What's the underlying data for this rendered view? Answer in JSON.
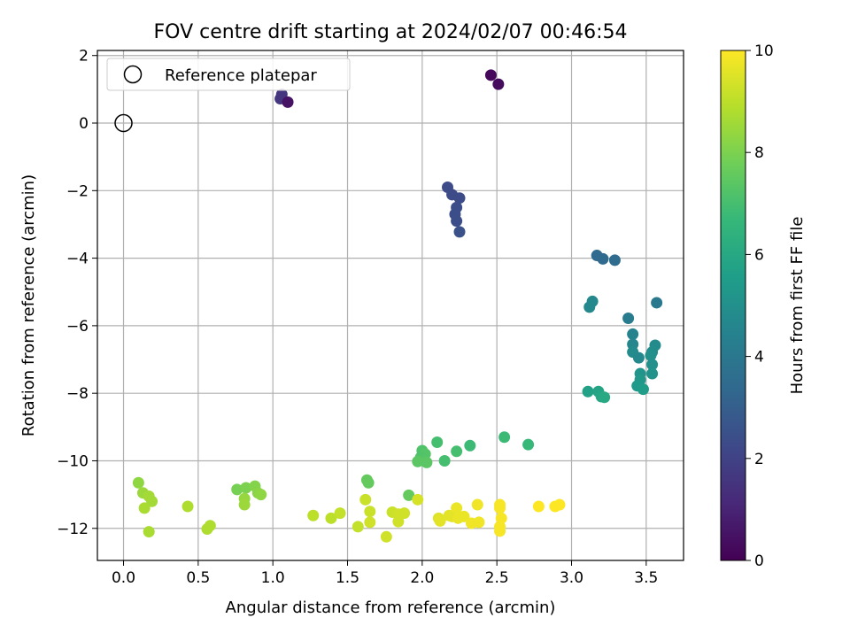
{
  "chart_data": {
    "type": "scatter",
    "title": "FOV centre drift starting at 2024/02/07 00:46:54",
    "xlabel": "Angular distance from reference (arcmin)",
    "ylabel": "Rotation from reference (arcmin)",
    "xlim": [
      -0.175,
      3.75
    ],
    "ylim": [
      -12.95,
      2.15
    ],
    "xticks": [
      "0.0",
      "0.5",
      "1.0",
      "1.5",
      "2.0",
      "2.5",
      "3.0",
      "3.5"
    ],
    "yticks": [
      "2",
      "0",
      "−2",
      "−4",
      "−6",
      "−8",
      "−10",
      "−12"
    ],
    "grid": true,
    "legend": {
      "placement": "top-left",
      "entries": [
        "Reference platepar"
      ]
    },
    "colorbar": {
      "label": "Hours from first FF file",
      "range": [
        0,
        10
      ],
      "ticks": [
        "0",
        "2",
        "4",
        "6",
        "8",
        "10"
      ],
      "colormap": [
        "#440154",
        "#482878",
        "#3e4989",
        "#31688e",
        "#26828e",
        "#1f9e89",
        "#35b779",
        "#6ece58",
        "#b5de2b",
        "#fde725"
      ]
    },
    "reference_point": {
      "x": 0.0,
      "y": 0.0
    },
    "points": [
      {
        "x": 2.46,
        "y": 1.42,
        "t": 0.2
      },
      {
        "x": 2.51,
        "y": 1.15,
        "t": 0.3
      },
      {
        "x": 1.05,
        "y": 0.72,
        "t": 1.6
      },
      {
        "x": 1.06,
        "y": 0.85,
        "t": 1.5
      },
      {
        "x": 1.1,
        "y": 0.62,
        "t": 0.5
      },
      {
        "x": 2.17,
        "y": -1.9,
        "t": 2.3
      },
      {
        "x": 2.2,
        "y": -2.12,
        "t": 2.3
      },
      {
        "x": 2.25,
        "y": -2.22,
        "t": 2.3
      },
      {
        "x": 2.23,
        "y": -2.5,
        "t": 2.4
      },
      {
        "x": 2.22,
        "y": -2.7,
        "t": 2.4
      },
      {
        "x": 2.23,
        "y": -2.9,
        "t": 2.4
      },
      {
        "x": 2.25,
        "y": -3.22,
        "t": 2.5
      },
      {
        "x": 3.17,
        "y": -3.92,
        "t": 3.4
      },
      {
        "x": 3.21,
        "y": -4.02,
        "t": 3.4
      },
      {
        "x": 3.29,
        "y": -4.06,
        "t": 3.5
      },
      {
        "x": 3.12,
        "y": -5.45,
        "t": 4.7
      },
      {
        "x": 3.14,
        "y": -5.28,
        "t": 4.7
      },
      {
        "x": 3.38,
        "y": -5.78,
        "t": 4.2
      },
      {
        "x": 3.57,
        "y": -5.32,
        "t": 4.0
      },
      {
        "x": 3.41,
        "y": -6.25,
        "t": 4.5
      },
      {
        "x": 3.41,
        "y": -6.55,
        "t": 4.6
      },
      {
        "x": 3.41,
        "y": -6.78,
        "t": 4.8
      },
      {
        "x": 3.45,
        "y": -6.95,
        "t": 4.7
      },
      {
        "x": 3.56,
        "y": -6.58,
        "t": 4.8
      },
      {
        "x": 3.54,
        "y": -6.78,
        "t": 4.9
      },
      {
        "x": 3.53,
        "y": -6.88,
        "t": 5.0
      },
      {
        "x": 3.54,
        "y": -7.15,
        "t": 5.0
      },
      {
        "x": 3.54,
        "y": -7.42,
        "t": 5.1
      },
      {
        "x": 3.46,
        "y": -7.42,
        "t": 5.2
      },
      {
        "x": 3.46,
        "y": -7.6,
        "t": 5.3
      },
      {
        "x": 3.44,
        "y": -7.78,
        "t": 5.4
      },
      {
        "x": 3.48,
        "y": -7.88,
        "t": 5.5
      },
      {
        "x": 3.11,
        "y": -7.95,
        "t": 5.7
      },
      {
        "x": 3.18,
        "y": -7.95,
        "t": 5.8
      },
      {
        "x": 3.2,
        "y": -8.1,
        "t": 5.9
      },
      {
        "x": 3.22,
        "y": -8.12,
        "t": 6.0
      },
      {
        "x": 2.55,
        "y": -9.3,
        "t": 6.8
      },
      {
        "x": 2.71,
        "y": -9.52,
        "t": 6.7
      },
      {
        "x": 2.32,
        "y": -9.55,
        "t": 6.8
      },
      {
        "x": 2.1,
        "y": -9.45,
        "t": 7.0
      },
      {
        "x": 2.23,
        "y": -9.72,
        "t": 7.0
      },
      {
        "x": 2.15,
        "y": -10.0,
        "t": 7.0
      },
      {
        "x": 2.0,
        "y": -9.7,
        "t": 7.2
      },
      {
        "x": 2.02,
        "y": -9.8,
        "t": 7.3
      },
      {
        "x": 1.99,
        "y": -9.9,
        "t": 7.2
      },
      {
        "x": 2.01,
        "y": -10.0,
        "t": 7.3
      },
      {
        "x": 1.97,
        "y": -10.02,
        "t": 7.4
      },
      {
        "x": 2.03,
        "y": -10.05,
        "t": 7.4
      },
      {
        "x": 1.91,
        "y": -11.02,
        "t": 7.6
      },
      {
        "x": 1.63,
        "y": -10.57,
        "t": 7.6
      },
      {
        "x": 1.64,
        "y": -10.65,
        "t": 7.6
      },
      {
        "x": 0.76,
        "y": -10.85,
        "t": 7.9
      },
      {
        "x": 0.82,
        "y": -10.8,
        "t": 8.0
      },
      {
        "x": 0.88,
        "y": -10.75,
        "t": 8.1
      },
      {
        "x": 0.9,
        "y": -10.95,
        "t": 8.2
      },
      {
        "x": 0.92,
        "y": -11.0,
        "t": 8.3
      },
      {
        "x": 0.81,
        "y": -11.12,
        "t": 8.4
      },
      {
        "x": 0.81,
        "y": -11.3,
        "t": 8.5
      },
      {
        "x": 0.1,
        "y": -10.65,
        "t": 8.3
      },
      {
        "x": 0.13,
        "y": -10.95,
        "t": 8.5
      },
      {
        "x": 0.17,
        "y": -11.05,
        "t": 8.6
      },
      {
        "x": 0.19,
        "y": -11.2,
        "t": 8.6
      },
      {
        "x": 0.14,
        "y": -11.4,
        "t": 8.7
      },
      {
        "x": 0.17,
        "y": -12.1,
        "t": 8.7
      },
      {
        "x": 0.43,
        "y": -11.35,
        "t": 8.8
      },
      {
        "x": 0.58,
        "y": -11.92,
        "t": 8.8
      },
      {
        "x": 0.56,
        "y": -12.02,
        "t": 8.8
      },
      {
        "x": 1.27,
        "y": -11.62,
        "t": 9.0
      },
      {
        "x": 1.39,
        "y": -11.7,
        "t": 9.0
      },
      {
        "x": 1.45,
        "y": -11.55,
        "t": 9.1
      },
      {
        "x": 1.57,
        "y": -11.95,
        "t": 9.1
      },
      {
        "x": 1.62,
        "y": -11.15,
        "t": 9.2
      },
      {
        "x": 1.65,
        "y": -11.5,
        "t": 9.2
      },
      {
        "x": 1.65,
        "y": -11.82,
        "t": 9.3
      },
      {
        "x": 1.76,
        "y": -12.25,
        "t": 9.3
      },
      {
        "x": 1.8,
        "y": -11.52,
        "t": 9.2
      },
      {
        "x": 1.84,
        "y": -11.58,
        "t": 9.3
      },
      {
        "x": 1.84,
        "y": -11.8,
        "t": 9.3
      },
      {
        "x": 1.88,
        "y": -11.55,
        "t": 9.3
      },
      {
        "x": 1.97,
        "y": -11.15,
        "t": 9.4
      },
      {
        "x": 2.11,
        "y": -11.7,
        "t": 9.5
      },
      {
        "x": 2.12,
        "y": -11.78,
        "t": 9.6
      },
      {
        "x": 2.18,
        "y": -11.62,
        "t": 9.6
      },
      {
        "x": 2.2,
        "y": -11.65,
        "t": 9.6
      },
      {
        "x": 2.23,
        "y": -11.4,
        "t": 9.7
      },
      {
        "x": 2.24,
        "y": -11.7,
        "t": 9.7
      },
      {
        "x": 2.28,
        "y": -11.65,
        "t": 9.7
      },
      {
        "x": 2.33,
        "y": -11.85,
        "t": 9.8
      },
      {
        "x": 2.37,
        "y": -11.3,
        "t": 9.8
      },
      {
        "x": 2.38,
        "y": -11.82,
        "t": 9.8
      },
      {
        "x": 2.52,
        "y": -11.3,
        "t": 9.9
      },
      {
        "x": 2.52,
        "y": -11.4,
        "t": 9.9
      },
      {
        "x": 2.53,
        "y": -11.7,
        "t": 9.9
      },
      {
        "x": 2.52,
        "y": -11.95,
        "t": 9.9
      },
      {
        "x": 2.52,
        "y": -12.08,
        "t": 9.9
      },
      {
        "x": 2.78,
        "y": -11.35,
        "t": 10.0
      },
      {
        "x": 2.89,
        "y": -11.35,
        "t": 10.0
      },
      {
        "x": 2.92,
        "y": -11.3,
        "t": 10.0
      }
    ]
  }
}
